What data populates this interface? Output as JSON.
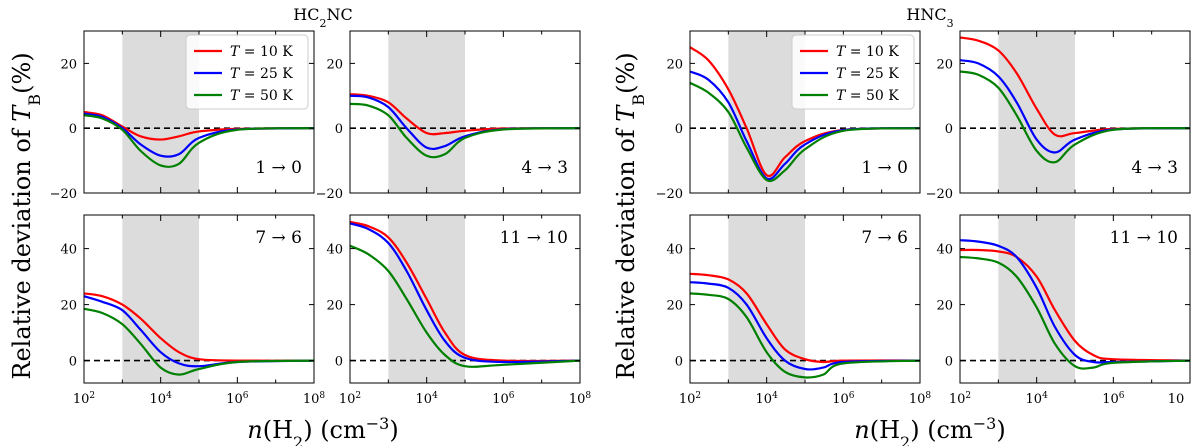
{
  "figure": {
    "y_axis_label_prefix": "Relative deviation of ",
    "y_axis_label_var": "T",
    "y_axis_label_sub": "B",
    "y_axis_label_suffix": "(%)",
    "x_axis_label_prefix": "n",
    "x_axis_label_mid": "(H",
    "x_axis_label_sub": "2",
    "x_axis_label_suffix": ") (cm",
    "x_axis_label_sup": "−3",
    "x_axis_label_end": ")"
  },
  "groups": [
    {
      "title": "HC",
      "title_sub": "2",
      "title_end": "NC"
    },
    {
      "title": "HNC",
      "title_sub": "3",
      "title_end": ""
    }
  ],
  "legend": {
    "placement": "upper-right of first panel in each group",
    "entries": [
      {
        "var": "T",
        "text": " = 10 K",
        "color": "#ff0000"
      },
      {
        "var": "T",
        "text": " = 25 K",
        "color": "#0000ff"
      },
      {
        "var": "T",
        "text": " = 50 K",
        "color": "#008000"
      }
    ]
  },
  "x_tick_labels": [
    "10",
    "10",
    "10",
    "10"
  ],
  "x_tick_exponents": [
    "2",
    "4",
    "6",
    "8"
  ],
  "x_tick_label_last_group2": "10",
  "chart_data": [
    {
      "type": "line",
      "group": "HC2NC",
      "transition": "1 → 0",
      "xscale": "log",
      "xlim": [
        100,
        100000000
      ],
      "ylim": [
        -20,
        30
      ],
      "yticks": [
        -20,
        0,
        20
      ],
      "shaded_band": [
        1000,
        100000
      ],
      "reference_line": 0,
      "x": [
        100,
        300,
        1000,
        3000,
        10000,
        30000,
        100000,
        1000000,
        100000000
      ],
      "series": [
        {
          "name": "T = 10 K",
          "color": "#ff0000",
          "values": [
            5,
            4,
            0.5,
            -2.5,
            -3.5,
            -2.5,
            -1,
            -0.2,
            0
          ]
        },
        {
          "name": "T = 25 K",
          "color": "#0000ff",
          "values": [
            4.5,
            3.5,
            0,
            -5,
            -8.5,
            -8,
            -3,
            -0.4,
            0
          ]
        },
        {
          "name": "T = 50 K",
          "color": "#008000",
          "values": [
            4,
            3,
            -0.5,
            -7,
            -11.5,
            -11,
            -4.5,
            -0.5,
            0
          ]
        }
      ]
    },
    {
      "type": "line",
      "group": "HC2NC",
      "transition": "4 → 3",
      "xscale": "log",
      "xlim": [
        100,
        100000000
      ],
      "ylim": [
        -20,
        30
      ],
      "yticks": [
        -20,
        0,
        20
      ],
      "shaded_band": [
        1000,
        100000
      ],
      "reference_line": 0,
      "x": [
        100,
        300,
        1000,
        3000,
        10000,
        30000,
        100000,
        1000000,
        100000000
      ],
      "series": [
        {
          "name": "T = 10 K",
          "color": "#ff0000",
          "values": [
            10.5,
            10,
            8,
            3,
            -1.5,
            -1.5,
            -0.8,
            -0.1,
            0
          ]
        },
        {
          "name": "T = 25 K",
          "color": "#0000ff",
          "values": [
            10,
            9.5,
            6.5,
            0,
            -6,
            -5.5,
            -2.5,
            -0.3,
            0
          ]
        },
        {
          "name": "T = 50 K",
          "color": "#008000",
          "values": [
            7.5,
            7,
            4,
            -3,
            -8.5,
            -8,
            -3,
            -0.4,
            0
          ]
        }
      ]
    },
    {
      "type": "line",
      "group": "HC2NC",
      "transition": "7 → 6",
      "xscale": "log",
      "xlim": [
        100,
        100000000
      ],
      "ylim": [
        -8,
        52
      ],
      "yticks": [
        0,
        20,
        40
      ],
      "shaded_band": [
        1000,
        100000
      ],
      "reference_line": 0,
      "x": [
        100,
        300,
        1000,
        3000,
        10000,
        30000,
        100000,
        1000000,
        100000000
      ],
      "series": [
        {
          "name": "T = 10 K",
          "color": "#ff0000",
          "values": [
            24,
            23,
            20,
            15,
            8,
            3,
            0.5,
            0,
            0
          ]
        },
        {
          "name": "T = 25 K",
          "color": "#0000ff",
          "values": [
            23,
            21,
            18,
            11,
            3,
            -1,
            -2,
            -0.5,
            0
          ]
        },
        {
          "name": "T = 50 K",
          "color": "#008000",
          "values": [
            18.5,
            17,
            13,
            6,
            -2.5,
            -5,
            -3,
            -0.5,
            0
          ]
        }
      ]
    },
    {
      "type": "line",
      "group": "HC2NC",
      "transition": "11 → 10",
      "xscale": "log",
      "xlim": [
        100,
        100000000
      ],
      "ylim": [
        -8,
        52
      ],
      "yticks": [
        0,
        20,
        40
      ],
      "shaded_band": [
        1000,
        100000
      ],
      "reference_line": 0,
      "x": [
        100,
        300,
        1000,
        3000,
        10000,
        30000,
        100000,
        1000000,
        100000000
      ],
      "series": [
        {
          "name": "T = 10 K",
          "color": "#ff0000",
          "values": [
            49.5,
            48,
            44,
            35,
            22,
            10,
            2,
            0,
            0
          ]
        },
        {
          "name": "T = 25 K",
          "color": "#0000ff",
          "values": [
            49,
            47,
            42,
            32,
            18,
            7,
            1,
            -0.5,
            0
          ]
        },
        {
          "name": "T = 50 K",
          "color": "#008000",
          "values": [
            41,
            38,
            32,
            22,
            10,
            2,
            -2,
            -1.5,
            0
          ]
        }
      ]
    },
    {
      "type": "line",
      "group": "HNC3",
      "transition": "1 → 0",
      "xscale": "log",
      "xlim": [
        100,
        100000000
      ],
      "ylim": [
        -20,
        30
      ],
      "yticks": [
        -20,
        0,
        20
      ],
      "shaded_band": [
        1000,
        100000
      ],
      "reference_line": 0,
      "x": [
        100,
        300,
        1000,
        3000,
        10000,
        30000,
        100000,
        1000000,
        100000000
      ],
      "series": [
        {
          "name": "T = 10 K",
          "color": "#ff0000",
          "values": [
            25,
            21,
            12,
            0,
            -14.5,
            -9,
            -4,
            -0.5,
            0
          ]
        },
        {
          "name": "T = 25 K",
          "color": "#0000ff",
          "values": [
            17.5,
            15,
            8,
            -4,
            -15.5,
            -11,
            -5,
            -0.6,
            0
          ]
        },
        {
          "name": "T = 50 K",
          "color": "#008000",
          "values": [
            14,
            11,
            5,
            -6,
            -16,
            -13,
            -6.5,
            -0.8,
            0
          ]
        }
      ]
    },
    {
      "type": "line",
      "group": "HNC3",
      "transition": "4 → 3",
      "xscale": "log",
      "xlim": [
        100,
        100000000
      ],
      "ylim": [
        -20,
        30
      ],
      "yticks": [
        -20,
        0,
        20
      ],
      "shaded_band": [
        1000,
        100000
      ],
      "reference_line": 0,
      "x": [
        100,
        300,
        1000,
        3000,
        10000,
        30000,
        100000,
        1000000,
        100000000
      ],
      "series": [
        {
          "name": "T = 10 K",
          "color": "#ff0000",
          "values": [
            28,
            27,
            24,
            17,
            6,
            -2,
            -1.5,
            -0.2,
            0
          ]
        },
        {
          "name": "T = 25 K",
          "color": "#0000ff",
          "values": [
            21,
            20,
            16,
            8,
            -3.5,
            -7.5,
            -3.5,
            -0.4,
            0
          ]
        },
        {
          "name": "T = 50 K",
          "color": "#008000",
          "values": [
            17.5,
            16.5,
            12.5,
            4,
            -7,
            -10.5,
            -5,
            -0.5,
            0
          ]
        }
      ]
    },
    {
      "type": "line",
      "group": "HNC3",
      "transition": "7 → 6",
      "xscale": "log",
      "xlim": [
        100,
        100000000
      ],
      "ylim": [
        -8,
        52
      ],
      "yticks": [
        0,
        20,
        40
      ],
      "shaded_band": [
        1000,
        100000
      ],
      "reference_line": 0,
      "x": [
        100,
        300,
        1000,
        3000,
        10000,
        30000,
        100000,
        300000,
        1000000,
        100000000
      ],
      "series": [
        {
          "name": "T = 10 K",
          "color": "#ff0000",
          "values": [
            31,
            30.5,
            29,
            24,
            13,
            4,
            0.5,
            -0.5,
            0,
            0
          ]
        },
        {
          "name": "T = 25 K",
          "color": "#0000ff",
          "values": [
            28,
            27.5,
            26,
            20,
            8,
            0,
            -3,
            -2.5,
            -0.5,
            0
          ]
        },
        {
          "name": "T = 50 K",
          "color": "#008000",
          "values": [
            24,
            23.5,
            22,
            15.5,
            3,
            -4,
            -6,
            -5,
            -1,
            0
          ]
        }
      ]
    },
    {
      "type": "line",
      "group": "HNC3",
      "transition": "11 → 10",
      "xscale": "log",
      "xlim": [
        100,
        100000000
      ],
      "ylim": [
        -8,
        52
      ],
      "yticks": [
        0,
        20,
        40
      ],
      "shaded_band": [
        1000,
        100000
      ],
      "reference_line": 0,
      "x": [
        100,
        300,
        1000,
        3000,
        10000,
        30000,
        100000,
        300000,
        1000000,
        100000000
      ],
      "series": [
        {
          "name": "T = 10 K",
          "color": "#ff0000",
          "values": [
            39.5,
            39.5,
            39,
            37,
            30,
            18,
            7,
            2,
            0.5,
            0
          ]
        },
        {
          "name": "T = 25 K",
          "color": "#0000ff",
          "values": [
            43,
            42.5,
            41,
            37,
            26,
            12,
            2,
            -0.5,
            -0.5,
            0
          ]
        },
        {
          "name": "T = 50 K",
          "color": "#008000",
          "values": [
            37,
            36.5,
            35,
            30,
            19,
            6,
            -2,
            -2.5,
            -0.8,
            0
          ]
        }
      ]
    }
  ]
}
